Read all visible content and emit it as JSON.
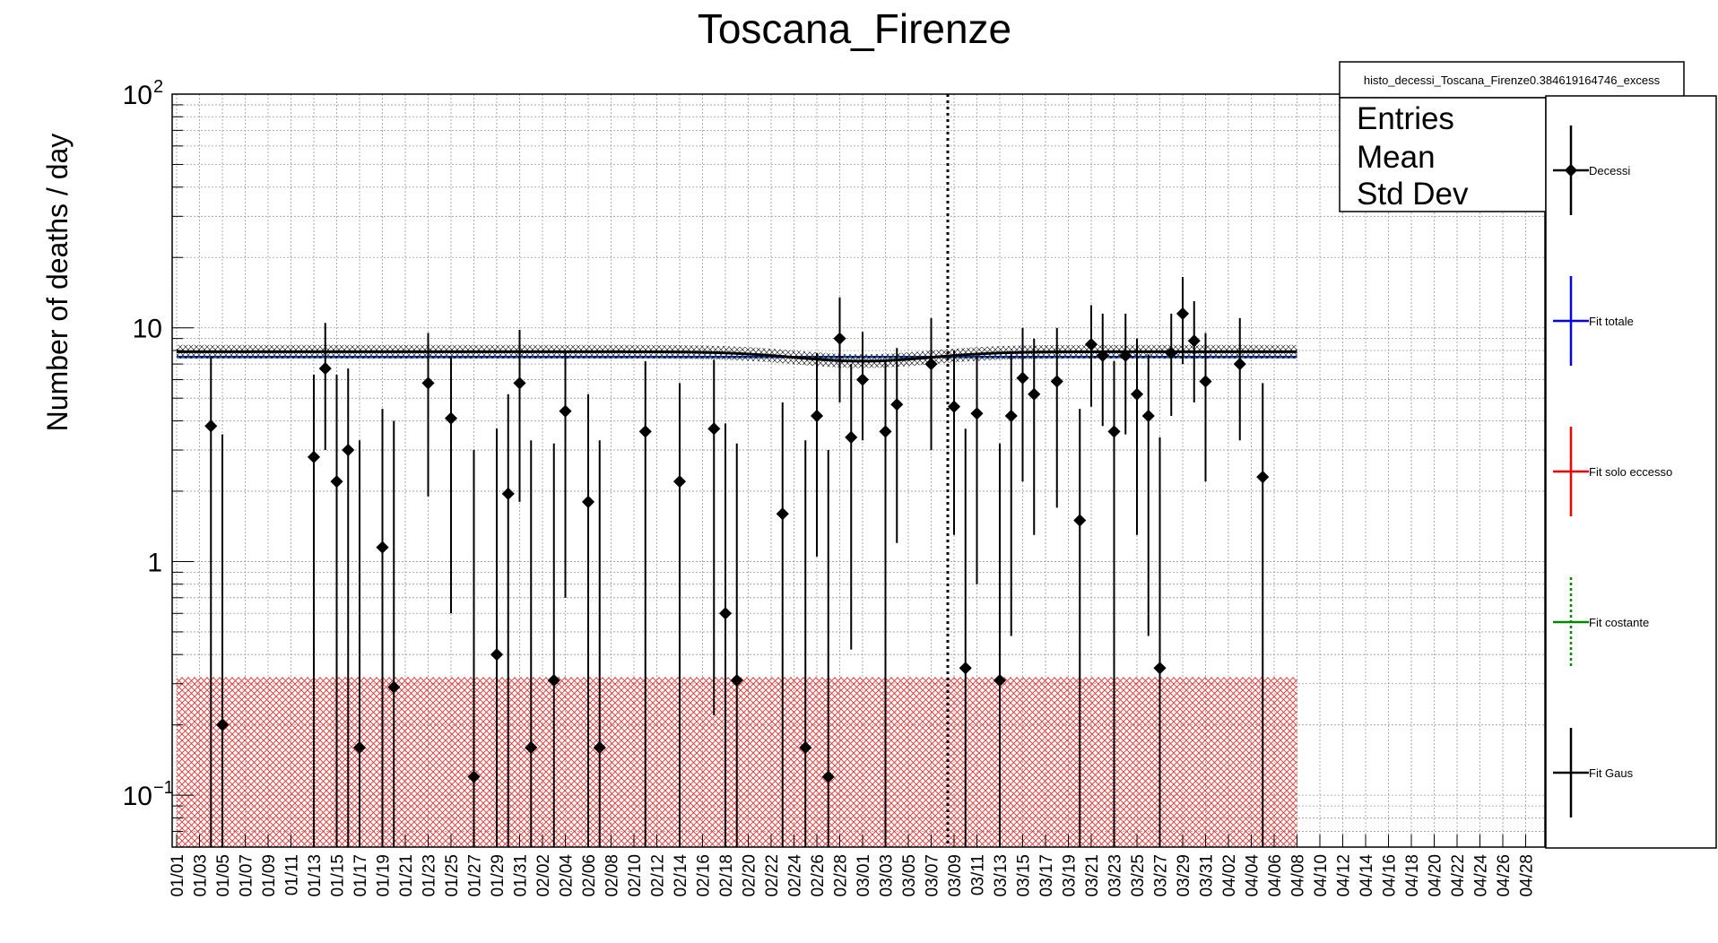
{
  "chart_data": {
    "type": "scatter",
    "title": "Toscana_Firenze",
    "ylabel": "Number of deaths / day",
    "xlabel": "",
    "y_scale": "log",
    "ylim": [
      0.06,
      100
    ],
    "y_ticks": [
      {
        "value": 100,
        "label": "10",
        "sup": "2"
      },
      {
        "value": 10,
        "label": "10",
        "sup": ""
      },
      {
        "value": 1,
        "label": "1",
        "sup": ""
      },
      {
        "value": 0.1,
        "label": "10",
        "sup": "−1"
      }
    ],
    "x_ticks": [
      "01/01",
      "01/03",
      "01/05",
      "01/07",
      "01/09",
      "01/11",
      "01/13",
      "01/15",
      "01/17",
      "01/19",
      "01/21",
      "01/23",
      "01/25",
      "01/27",
      "01/29",
      "01/31",
      "02/02",
      "02/04",
      "02/06",
      "02/08",
      "02/10",
      "02/12",
      "02/14",
      "02/16",
      "02/18",
      "02/20",
      "02/22",
      "02/24",
      "02/26",
      "02/28",
      "03/01",
      "03/03",
      "03/05",
      "03/07",
      "03/09",
      "03/11",
      "03/13",
      "03/15",
      "03/17",
      "03/19",
      "03/21",
      "03/23",
      "03/25",
      "03/27",
      "03/29",
      "03/31",
      "04/02",
      "04/04",
      "04/06",
      "04/08",
      "04/10",
      "04/12",
      "04/14",
      "04/16",
      "04/18",
      "04/20",
      "04/22",
      "04/24",
      "04/26",
      "04/28"
    ],
    "grid": true,
    "vertical_marker_date": "03/09",
    "excess_band": {
      "from": 0.06,
      "to": 0.32,
      "color": "#d62728"
    },
    "fit_constant_level": 7.5,
    "fit_gaus": {
      "baseline": 7.9,
      "min": 7.2,
      "center_day": 60,
      "sigma_days": 6
    },
    "series": [
      {
        "name": "Decessi",
        "color": "#000000",
        "points": [
          {
            "day": 3,
            "y": 3.8,
            "lo": 0.06,
            "hi": 7.5
          },
          {
            "day": 4,
            "y": 0.2,
            "lo": 0.06,
            "hi": 3.5
          },
          {
            "day": 12,
            "y": 2.8,
            "lo": 0.06,
            "hi": 6.3
          },
          {
            "day": 13,
            "y": 6.7,
            "lo": 3.0,
            "hi": 10.5
          },
          {
            "day": 14,
            "y": 2.2,
            "lo": 0.06,
            "hi": 6.3
          },
          {
            "day": 15,
            "y": 3.0,
            "lo": 0.06,
            "hi": 6.7
          },
          {
            "day": 16,
            "y": 0.16,
            "lo": 0.06,
            "hi": 3.3
          },
          {
            "day": 18,
            "y": 1.15,
            "lo": 0.06,
            "hi": 4.5
          },
          {
            "day": 19,
            "y": 0.29,
            "lo": 0.06,
            "hi": 4.0
          },
          {
            "day": 22,
            "y": 5.8,
            "lo": 1.9,
            "hi": 9.5
          },
          {
            "day": 24,
            "y": 4.1,
            "lo": 0.6,
            "hi": 7.5
          },
          {
            "day": 26,
            "y": 0.12,
            "lo": 0.06,
            "hi": 3.0
          },
          {
            "day": 28,
            "y": 0.4,
            "lo": 0.06,
            "hi": 3.7
          },
          {
            "day": 29,
            "y": 1.95,
            "lo": 0.06,
            "hi": 5.2
          },
          {
            "day": 30,
            "y": 5.8,
            "lo": 1.8,
            "hi": 9.8
          },
          {
            "day": 31,
            "y": 0.16,
            "lo": 0.06,
            "hi": 3.3
          },
          {
            "day": 33,
            "y": 0.31,
            "lo": 0.06,
            "hi": 3.2
          },
          {
            "day": 34,
            "y": 4.4,
            "lo": 0.7,
            "hi": 8.0
          },
          {
            "day": 36,
            "y": 1.8,
            "lo": 0.06,
            "hi": 5.2
          },
          {
            "day": 37,
            "y": 0.16,
            "lo": 0.06,
            "hi": 3.3
          },
          {
            "day": 41,
            "y": 3.6,
            "lo": 0.06,
            "hi": 7.2
          },
          {
            "day": 44,
            "y": 2.2,
            "lo": 0.06,
            "hi": 5.8
          },
          {
            "day": 47,
            "y": 3.7,
            "lo": 0.22,
            "hi": 7.3
          },
          {
            "day": 48,
            "y": 0.6,
            "lo": 0.06,
            "hi": 3.9
          },
          {
            "day": 49,
            "y": 0.31,
            "lo": 0.06,
            "hi": 3.2
          },
          {
            "day": 53,
            "y": 1.6,
            "lo": 0.06,
            "hi": 4.8
          },
          {
            "day": 55,
            "y": 0.16,
            "lo": 0.06,
            "hi": 3.3
          },
          {
            "day": 56,
            "y": 4.2,
            "lo": 1.05,
            "hi": 7.8
          },
          {
            "day": 57,
            "y": 0.12,
            "lo": 0.06,
            "hi": 3.0
          },
          {
            "day": 58,
            "y": 9.0,
            "lo": 4.8,
            "hi": 13.5
          },
          {
            "day": 59,
            "y": 3.4,
            "lo": 0.42,
            "hi": 7.0
          },
          {
            "day": 60,
            "y": 6.0,
            "lo": 3.3,
            "hi": 9.6
          },
          {
            "day": 62,
            "y": 3.6,
            "lo": 0.06,
            "hi": 7.2
          },
          {
            "day": 63,
            "y": 4.7,
            "lo": 1.2,
            "hi": 8.2
          },
          {
            "day": 66,
            "y": 7.0,
            "lo": 3.0,
            "hi": 11.0
          },
          {
            "day": 68,
            "y": 4.6,
            "lo": 1.3,
            "hi": 8.0
          },
          {
            "day": 69,
            "y": 0.35,
            "lo": 0.06,
            "hi": 3.7
          },
          {
            "day": 70,
            "y": 4.3,
            "lo": 0.8,
            "hi": 7.6
          },
          {
            "day": 72,
            "y": 0.31,
            "lo": 0.06,
            "hi": 3.2
          },
          {
            "day": 73,
            "y": 4.2,
            "lo": 0.48,
            "hi": 7.7
          },
          {
            "day": 74,
            "y": 6.1,
            "lo": 2.2,
            "hi": 10.0
          },
          {
            "day": 75,
            "y": 5.2,
            "lo": 1.3,
            "hi": 9.0
          },
          {
            "day": 77,
            "y": 5.9,
            "lo": 1.7,
            "hi": 10.0
          },
          {
            "day": 79,
            "y": 1.5,
            "lo": 0.06,
            "hi": 4.5
          },
          {
            "day": 80,
            "y": 8.5,
            "lo": 4.6,
            "hi": 12.5
          },
          {
            "day": 81,
            "y": 7.6,
            "lo": 3.8,
            "hi": 11.5
          },
          {
            "day": 82,
            "y": 3.6,
            "lo": 0.06,
            "hi": 7.2
          },
          {
            "day": 83,
            "y": 7.6,
            "lo": 3.5,
            "hi": 11.5
          },
          {
            "day": 84,
            "y": 5.2,
            "lo": 1.3,
            "hi": 9.0
          },
          {
            "day": 85,
            "y": 4.2,
            "lo": 0.48,
            "hi": 7.7
          },
          {
            "day": 86,
            "y": 0.35,
            "lo": 0.06,
            "hi": 3.4
          },
          {
            "day": 87,
            "y": 7.8,
            "lo": 4.2,
            "hi": 11.5
          },
          {
            "day": 88,
            "y": 11.5,
            "lo": 7.0,
            "hi": 16.5
          },
          {
            "day": 89,
            "y": 8.8,
            "lo": 4.8,
            "hi": 13.0
          },
          {
            "day": 90,
            "y": 5.9,
            "lo": 2.2,
            "hi": 9.5
          },
          {
            "day": 93,
            "y": 7.0,
            "lo": 3.3,
            "hi": 11.0
          },
          {
            "day": 95,
            "y": 2.3,
            "lo": 0.06,
            "hi": 5.8
          }
        ]
      }
    ]
  },
  "stats_box": {
    "title": "histo_decessi_Toscana_Firenze0.384619164746_excess",
    "labels": [
      "Entries",
      "Mean",
      "Std Dev"
    ]
  },
  "legend": {
    "position": "right",
    "entries": [
      {
        "label": "Decessi",
        "color": "#000000",
        "style": "marker"
      },
      {
        "label": "Fit totale",
        "color": "#0000ff",
        "style": "line"
      },
      {
        "label": "Fit solo eccesso",
        "color": "#ff0000",
        "style": "line"
      },
      {
        "label": "Fit costante",
        "color": "#008800",
        "style": "dotted"
      },
      {
        "label": "Fit Gaus",
        "color": "#000000",
        "style": "line"
      }
    ]
  }
}
